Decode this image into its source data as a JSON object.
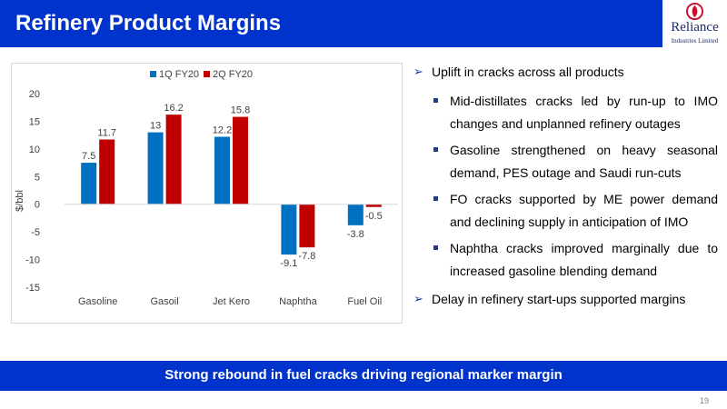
{
  "header": {
    "title": "Refinery Product Margins",
    "bg_color": "#0033cc"
  },
  "logo": {
    "name": "Reliance",
    "subtitle": "Industries Limited",
    "icon": "reliance-logo-icon"
  },
  "chart_data": {
    "type": "bar",
    "categories": [
      "Gasoline",
      "Gasoil",
      "Jet Kero",
      "Naphtha",
      "Fuel Oil"
    ],
    "series": [
      {
        "name": "1Q FY20",
        "color": "#0070c0",
        "values": [
          7.5,
          13,
          12.2,
          -9.1,
          -3.8
        ]
      },
      {
        "name": "2Q FY20",
        "color": "#c00000",
        "values": [
          11.7,
          16.2,
          15.8,
          -7.8,
          -0.5
        ]
      }
    ],
    "ylabel": "$/bbl",
    "ylim": [
      -15,
      20
    ],
    "yticks": [
      20,
      15,
      10,
      5,
      0,
      -5,
      -10,
      -15
    ],
    "legend": "top-center",
    "grid": false
  },
  "bullets": {
    "main": "Uplift in cracks across all products",
    "sub": [
      "Mid-distillates cracks led by run-up to IMO changes and unplanned refinery outages",
      "Gasoline strengthened on heavy seasonal demand, PES outage and Saudi run-cuts",
      "FO cracks supported by ME power demand and declining supply in anticipation of IMO",
      "Naphtha cracks improved marginally due to increased gasoline blending demand"
    ],
    "last": "Delay in refinery start-ups supported margins"
  },
  "footer": {
    "text": "Strong rebound in fuel cracks driving regional marker margin"
  },
  "page_number": "19"
}
